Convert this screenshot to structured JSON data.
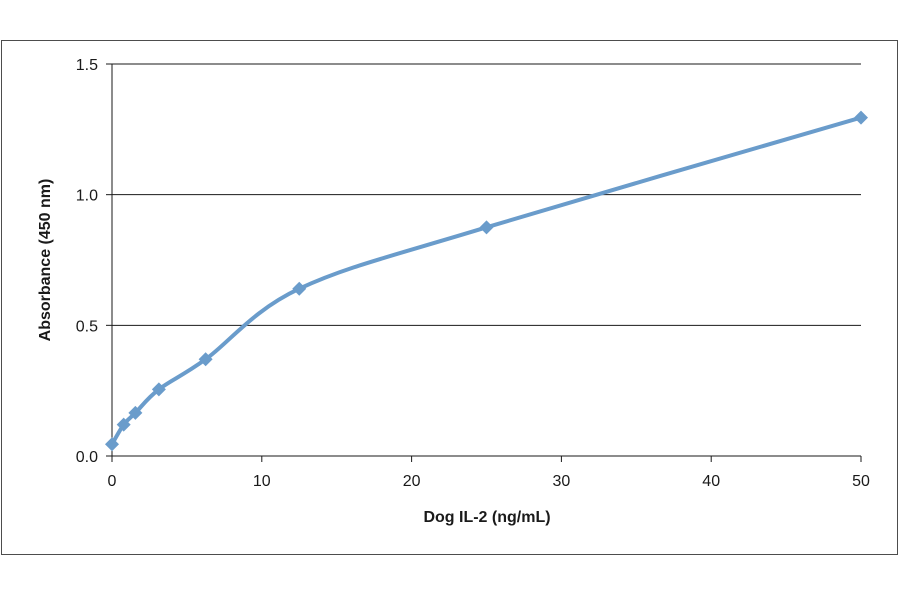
{
  "chart_data": {
    "type": "line",
    "title": "",
    "xlabel": "Dog IL-2 (ng/mL)",
    "ylabel": "Absorbance  (450 nm)",
    "xlim": [
      0,
      50
    ],
    "ylim": [
      0,
      1.5
    ],
    "x_ticks": [
      "0",
      "10",
      "20",
      "30",
      "40",
      "50"
    ],
    "y_ticks": [
      "0.0",
      "0.5",
      "1.0",
      "1.5"
    ],
    "grid": "horizontal",
    "legend": "none",
    "line_color": "#6a9ccb",
    "series": [
      {
        "x": [
          0,
          0.78,
          1.56,
          3.13,
          6.25,
          12.5,
          25,
          50
        ],
        "y": [
          0.045,
          0.12,
          0.165,
          0.255,
          0.37,
          0.64,
          0.875,
          1.295
        ],
        "marker": "diamond"
      }
    ]
  }
}
